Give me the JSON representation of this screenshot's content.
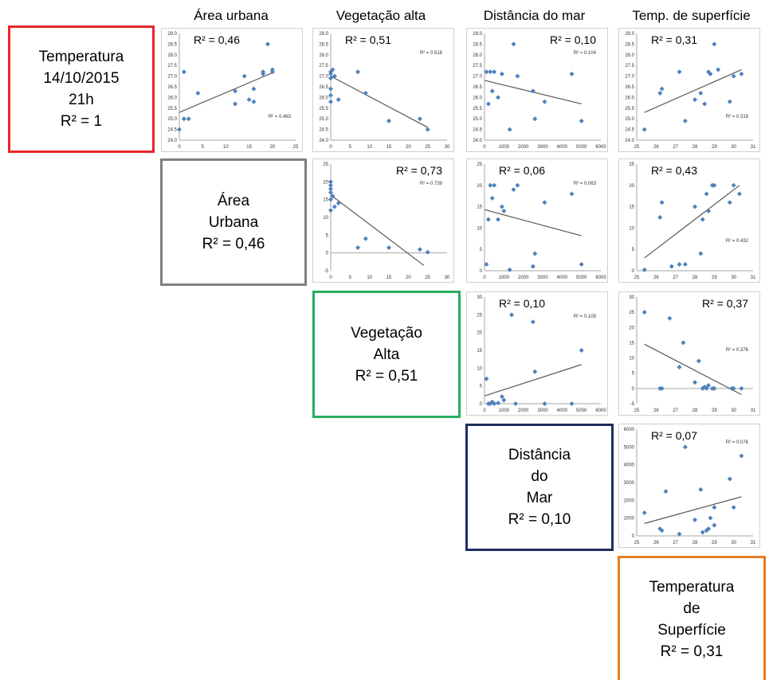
{
  "headers": [
    "Área urbana",
    "Vegetação alta",
    "Distância do mar",
    "Temp. de superfície"
  ],
  "labels": [
    {
      "lines": [
        "Temperatura",
        "14/10/2015",
        "21h",
        "R² = 1"
      ],
      "color": "#e8262b"
    },
    {
      "lines": [
        "Área",
        "Urbana",
        "R² = 0,46"
      ],
      "color": "#7f7f7f"
    },
    {
      "lines": [
        "Vegetação",
        "Alta",
        "R² = 0,51"
      ],
      "color": "#27ae60"
    },
    {
      "lines": [
        "Distância",
        "do",
        "Mar",
        "R² = 0,10"
      ],
      "color": "#1f2d5c"
    },
    {
      "lines": [
        "Temperatura",
        "de",
        "Superfície",
        "R² = 0,31"
      ],
      "color": "#e67e22"
    }
  ],
  "colors": {
    "points": "#4f81bd",
    "trend": "#595959",
    "axis": "#a6a6a6"
  },
  "chart_data": [
    {
      "type": "scatter",
      "row": 0,
      "col": 0,
      "r2_label": "R² = 0,46",
      "r2_small": "R² = 0.463",
      "x": [
        0,
        1,
        1,
        2,
        4,
        12,
        12,
        14,
        15,
        16,
        16,
        18,
        18,
        19,
        20,
        20
      ],
      "y": [
        24.5,
        25.0,
        27.2,
        25.0,
        26.2,
        25.7,
        26.3,
        27.0,
        25.9,
        25.8,
        26.4,
        27.1,
        27.2,
        28.5,
        27.2,
        27.3
      ],
      "xlim": [
        0,
        25
      ],
      "ylim": [
        24.0,
        29.0
      ],
      "xticks": [
        "0",
        "5",
        "10",
        "15",
        "20",
        "25"
      ],
      "yticks": [
        "24.0",
        "24.5",
        "25.0",
        "25.5",
        "26.0",
        "26.5",
        "27.0",
        "27.5",
        "28.0",
        "28.5",
        "29.0"
      ],
      "trend": [
        [
          0,
          25.3
        ],
        [
          20.5,
          27.2
        ]
      ]
    },
    {
      "type": "scatter",
      "row": 0,
      "col": 1,
      "r2_label": "R² = 0,51",
      "r2_small": "R² = 0.516",
      "x": [
        0,
        0,
        0,
        0,
        0,
        0,
        0.5,
        1,
        2,
        7,
        9,
        15,
        23,
        25
      ],
      "y": [
        25.8,
        26.1,
        26.4,
        26.9,
        27.1,
        27.2,
        27.3,
        27.0,
        25.9,
        27.2,
        26.2,
        24.9,
        25.0,
        24.5
      ],
      "xlim": [
        0,
        30
      ],
      "ylim": [
        24.0,
        29.0
      ],
      "xticks": [
        "0",
        "5",
        "10",
        "15",
        "20",
        "25",
        "30"
      ],
      "yticks": [
        "24.0",
        "24.5",
        "25.0",
        "25.5",
        "26.0",
        "26.5",
        "27.0",
        "27.5",
        "28.0",
        "28.5",
        "29.0"
      ],
      "trend": [
        [
          0,
          27.0
        ],
        [
          25,
          24.6
        ]
      ]
    },
    {
      "type": "scatter",
      "row": 0,
      "col": 2,
      "r2_label": "R² = 0,10",
      "r2_small": "R² = 0.104",
      "x": [
        100,
        200,
        300,
        400,
        500,
        700,
        900,
        1300,
        1500,
        1700,
        2500,
        2600,
        3100,
        4500,
        5000
      ],
      "y": [
        27.2,
        25.7,
        27.2,
        26.3,
        27.2,
        26.0,
        27.1,
        24.5,
        28.5,
        27.0,
        26.3,
        25.0,
        25.8,
        27.1,
        24.9
      ],
      "xlim": [
        0,
        6000
      ],
      "ylim": [
        24.0,
        29.0
      ],
      "xticks": [
        "0",
        "1000",
        "2000",
        "3000",
        "4000",
        "5000",
        "6000"
      ],
      "yticks": [
        "24.0",
        "24.5",
        "25.0",
        "25.5",
        "26.0",
        "26.5",
        "27.0",
        "27.5",
        "28.0",
        "28.5",
        "29.0"
      ],
      "trend": [
        [
          0,
          26.8
        ],
        [
          5000,
          25.7
        ]
      ]
    },
    {
      "type": "scatter",
      "row": 0,
      "col": 3,
      "r2_label": "R² = 0,31",
      "r2_small": "R² = 0.319",
      "x": [
        25.4,
        26.2,
        26.3,
        27.2,
        27.5,
        28.0,
        28.3,
        28.5,
        28.7,
        28.8,
        29.0,
        29.2,
        29.8,
        30.0,
        30.4
      ],
      "y": [
        24.5,
        26.2,
        26.4,
        27.2,
        24.9,
        25.9,
        26.2,
        25.7,
        27.2,
        27.1,
        28.5,
        27.3,
        25.8,
        27.0,
        27.1
      ],
      "xlim": [
        25,
        31
      ],
      "ylim": [
        24.0,
        29.0
      ],
      "xticks": [
        "25",
        "26",
        "27",
        "28",
        "29",
        "30",
        "31"
      ],
      "yticks": [
        "24.0",
        "24.5",
        "25.0",
        "25.5",
        "26.0",
        "26.5",
        "27.0",
        "27.5",
        "28.0",
        "28.5",
        "29.0"
      ],
      "trend": [
        [
          25.4,
          25.3
        ],
        [
          30.4,
          27.3
        ]
      ]
    },
    {
      "type": "scatter",
      "row": 1,
      "col": 1,
      "r2_label": "R² = 0,73",
      "r2_small": "R² = 0.739",
      "x": [
        0,
        0,
        0,
        0,
        0,
        0,
        0.5,
        1,
        2,
        7,
        9,
        15,
        23,
        25
      ],
      "y": [
        12,
        15,
        17,
        18,
        19,
        20,
        16,
        13,
        14,
        1.5,
        4,
        1.5,
        1,
        0.2
      ],
      "xlim": [
        0,
        30
      ],
      "ylim": [
        -5,
        25
      ],
      "xticks": [
        "0",
        "5",
        "10",
        "15",
        "20",
        "25",
        "30"
      ],
      "yticks": [
        "-5",
        "0",
        "5",
        "10",
        "15",
        "20",
        "25"
      ],
      "trend": [
        [
          0,
          16.3
        ],
        [
          24,
          -3.5
        ]
      ]
    },
    {
      "type": "scatter",
      "row": 1,
      "col": 2,
      "r2_label": "R² = 0,06",
      "r2_small": "R² = 0.063",
      "x": [
        100,
        200,
        300,
        400,
        500,
        700,
        900,
        1000,
        1300,
        1500,
        1700,
        2500,
        2600,
        3100,
        4500,
        5000
      ],
      "y": [
        1.5,
        12,
        20,
        17,
        20,
        12,
        15,
        14,
        0.2,
        19,
        20,
        1,
        4,
        16,
        18,
        1.5
      ],
      "xlim": [
        0,
        6000
      ],
      "ylim": [
        0,
        25
      ],
      "xticks": [
        "0",
        "1000",
        "2000",
        "3000",
        "4000",
        "5000",
        "6000"
      ],
      "yticks": [
        "0",
        "5",
        "10",
        "15",
        "20",
        "25"
      ],
      "trend": [
        [
          0,
          14.3
        ],
        [
          5000,
          8.2
        ]
      ]
    },
    {
      "type": "scatter",
      "row": 1,
      "col": 3,
      "r2_label": "R² = 0,43",
      "r2_small": "R² = 0.432",
      "x": [
        25.4,
        26.2,
        26.3,
        26.8,
        27.2,
        27.5,
        28.0,
        28.3,
        28.4,
        28.6,
        28.7,
        28.9,
        29.0,
        29.8,
        30.0,
        30.3
      ],
      "y": [
        0.2,
        12.5,
        16,
        1,
        1.5,
        1.5,
        15,
        4,
        12,
        18,
        14,
        20,
        20,
        16,
        20,
        18
      ],
      "xlim": [
        25,
        31
      ],
      "ylim": [
        0,
        25
      ],
      "xticks": [
        "25",
        "26",
        "27",
        "28",
        "29",
        "30",
        "31"
      ],
      "yticks": [
        "0",
        "5",
        "10",
        "15",
        "20",
        "25"
      ],
      "trend": [
        [
          25.4,
          3.0
        ],
        [
          30.3,
          20.0
        ]
      ]
    },
    {
      "type": "scatter",
      "row": 2,
      "col": 2,
      "r2_label": "R² = 0,10",
      "r2_small": "R² = 0.105",
      "x": [
        100,
        200,
        300,
        400,
        500,
        700,
        900,
        1000,
        1400,
        1600,
        2500,
        2600,
        3100,
        4500,
        5000
      ],
      "y": [
        7,
        0,
        0,
        0.5,
        0,
        0.2,
        2,
        1,
        25,
        0,
        23,
        9,
        0,
        0,
        15
      ],
      "xlim": [
        0,
        6000
      ],
      "ylim": [
        0,
        30
      ],
      "xticks": [
        "0",
        "1000",
        "2000",
        "3000",
        "4000",
        "5000",
        "6000"
      ],
      "yticks": [
        "0",
        "5",
        "10",
        "15",
        "20",
        "25",
        "30"
      ],
      "trend": [
        [
          0,
          2.2
        ],
        [
          5000,
          11.0
        ]
      ]
    },
    {
      "type": "scatter",
      "row": 2,
      "col": 3,
      "r2_label": "R² = 0,37",
      "r2_small": "R² = 0.376",
      "x": [
        25.4,
        26.2,
        26.3,
        26.7,
        27.2,
        27.4,
        28.0,
        28.2,
        28.4,
        28.5,
        28.6,
        28.7,
        28.9,
        29.0,
        29.9,
        30.0,
        30.4
      ],
      "y": [
        25,
        0,
        0,
        23,
        7,
        15,
        2,
        9,
        0,
        0.5,
        0,
        1,
        0,
        0,
        0,
        0,
        0
      ],
      "xlim": [
        25,
        31
      ],
      "ylim": [
        -5,
        30
      ],
      "xticks": [
        "25",
        "26",
        "27",
        "28",
        "29",
        "30",
        "31"
      ],
      "yticks": [
        "-5",
        "0",
        "5",
        "10",
        "15",
        "20",
        "25",
        "30"
      ],
      "trend": [
        [
          25.4,
          14.5
        ],
        [
          30.4,
          -2.0
        ]
      ]
    },
    {
      "type": "scatter",
      "row": 3,
      "col": 3,
      "r2_label": "R² = 0,07",
      "r2_small": "R² = 0.076",
      "x": [
        25.4,
        26.2,
        26.3,
        26.5,
        27.2,
        27.5,
        28.0,
        28.3,
        28.4,
        28.6,
        28.7,
        28.8,
        29.0,
        29.0,
        29.8,
        30.0,
        30.4
      ],
      "y": [
        1300,
        400,
        300,
        2500,
        100,
        5000,
        900,
        2600,
        200,
        300,
        400,
        1000,
        600,
        1600,
        3200,
        1600,
        4500
      ],
      "xlim": [
        25,
        31
      ],
      "ylim": [
        0,
        6000
      ],
      "xticks": [
        "25",
        "26",
        "27",
        "28",
        "29",
        "30",
        "31"
      ],
      "yticks": [
        "0",
        "1000",
        "2000",
        "3000",
        "4000",
        "5000",
        "6000"
      ],
      "trend": [
        [
          25.4,
          700
        ],
        [
          30.4,
          2200
        ]
      ]
    }
  ]
}
